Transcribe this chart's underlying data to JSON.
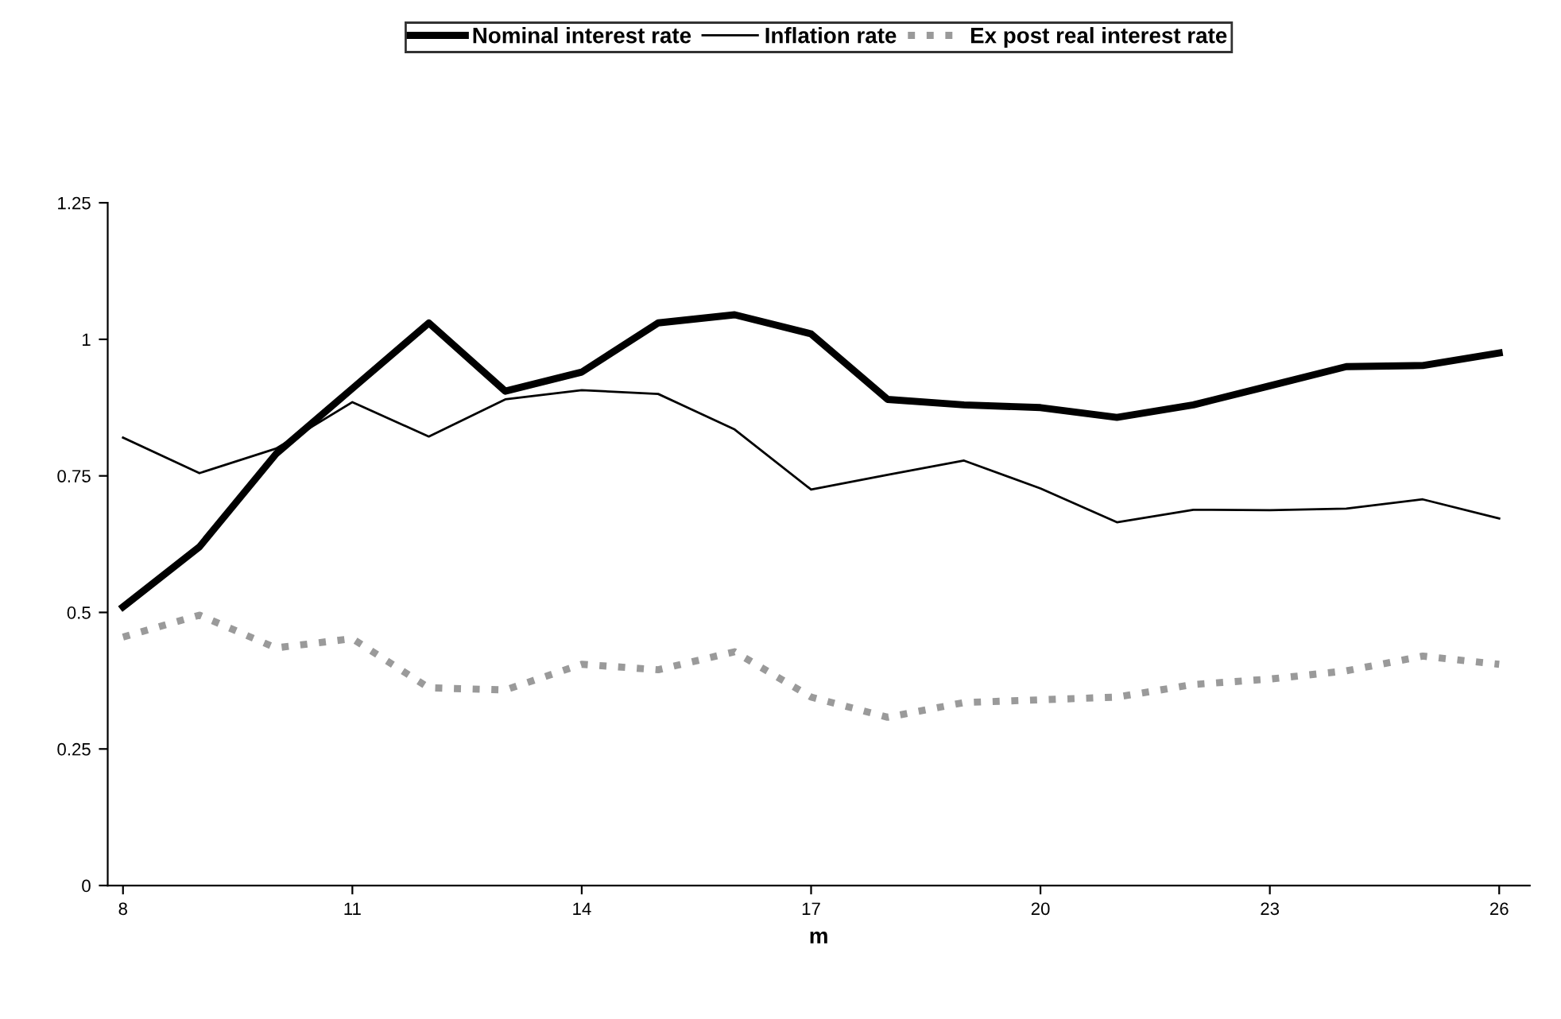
{
  "chart_data": {
    "type": "line",
    "xlabel": "m",
    "x": [
      8,
      9,
      10,
      11,
      12,
      13,
      14,
      15,
      16,
      17,
      18,
      19,
      20,
      21,
      22,
      23,
      24,
      25,
      26
    ],
    "xlim": [
      7.8,
      26.4
    ],
    "xticks": [
      8,
      11,
      14,
      17,
      20,
      23,
      26
    ],
    "ylim": [
      0,
      1.25
    ],
    "yticks": [
      0,
      0.25,
      0.5,
      0.75,
      1,
      1.25
    ],
    "grid": false,
    "legend": "top",
    "marker": "none",
    "series": [
      {
        "name": "Nominal interest rate",
        "color": "#000000",
        "line_style": "solid",
        "values": [
          0.51,
          0.62,
          0.79,
          0.91,
          1.03,
          0.905,
          0.94,
          1.03,
          1.045,
          1.01,
          0.89,
          0.88,
          0.875,
          0.857,
          0.88,
          0.915,
          0.95,
          0.952,
          0.975
        ]
      },
      {
        "name": "Inflation rate",
        "color": "#000000",
        "line_style": "solid",
        "values": [
          0.82,
          0.755,
          0.8,
          0.885,
          0.822,
          0.89,
          0.907,
          0.9,
          0.835,
          0.725,
          0.752,
          0.778,
          0.727,
          0.665,
          0.688,
          0.687,
          0.69,
          0.707,
          0.672
        ]
      },
      {
        "name": "Ex post real interest rate",
        "color": "#9a9a9a",
        "line_style": "dotted",
        "values": [
          0.455,
          0.495,
          0.435,
          0.452,
          0.362,
          0.358,
          0.405,
          0.395,
          0.428,
          0.345,
          0.308,
          0.335,
          0.34,
          0.345,
          0.368,
          0.378,
          0.393,
          0.42,
          0.405
        ]
      }
    ]
  }
}
